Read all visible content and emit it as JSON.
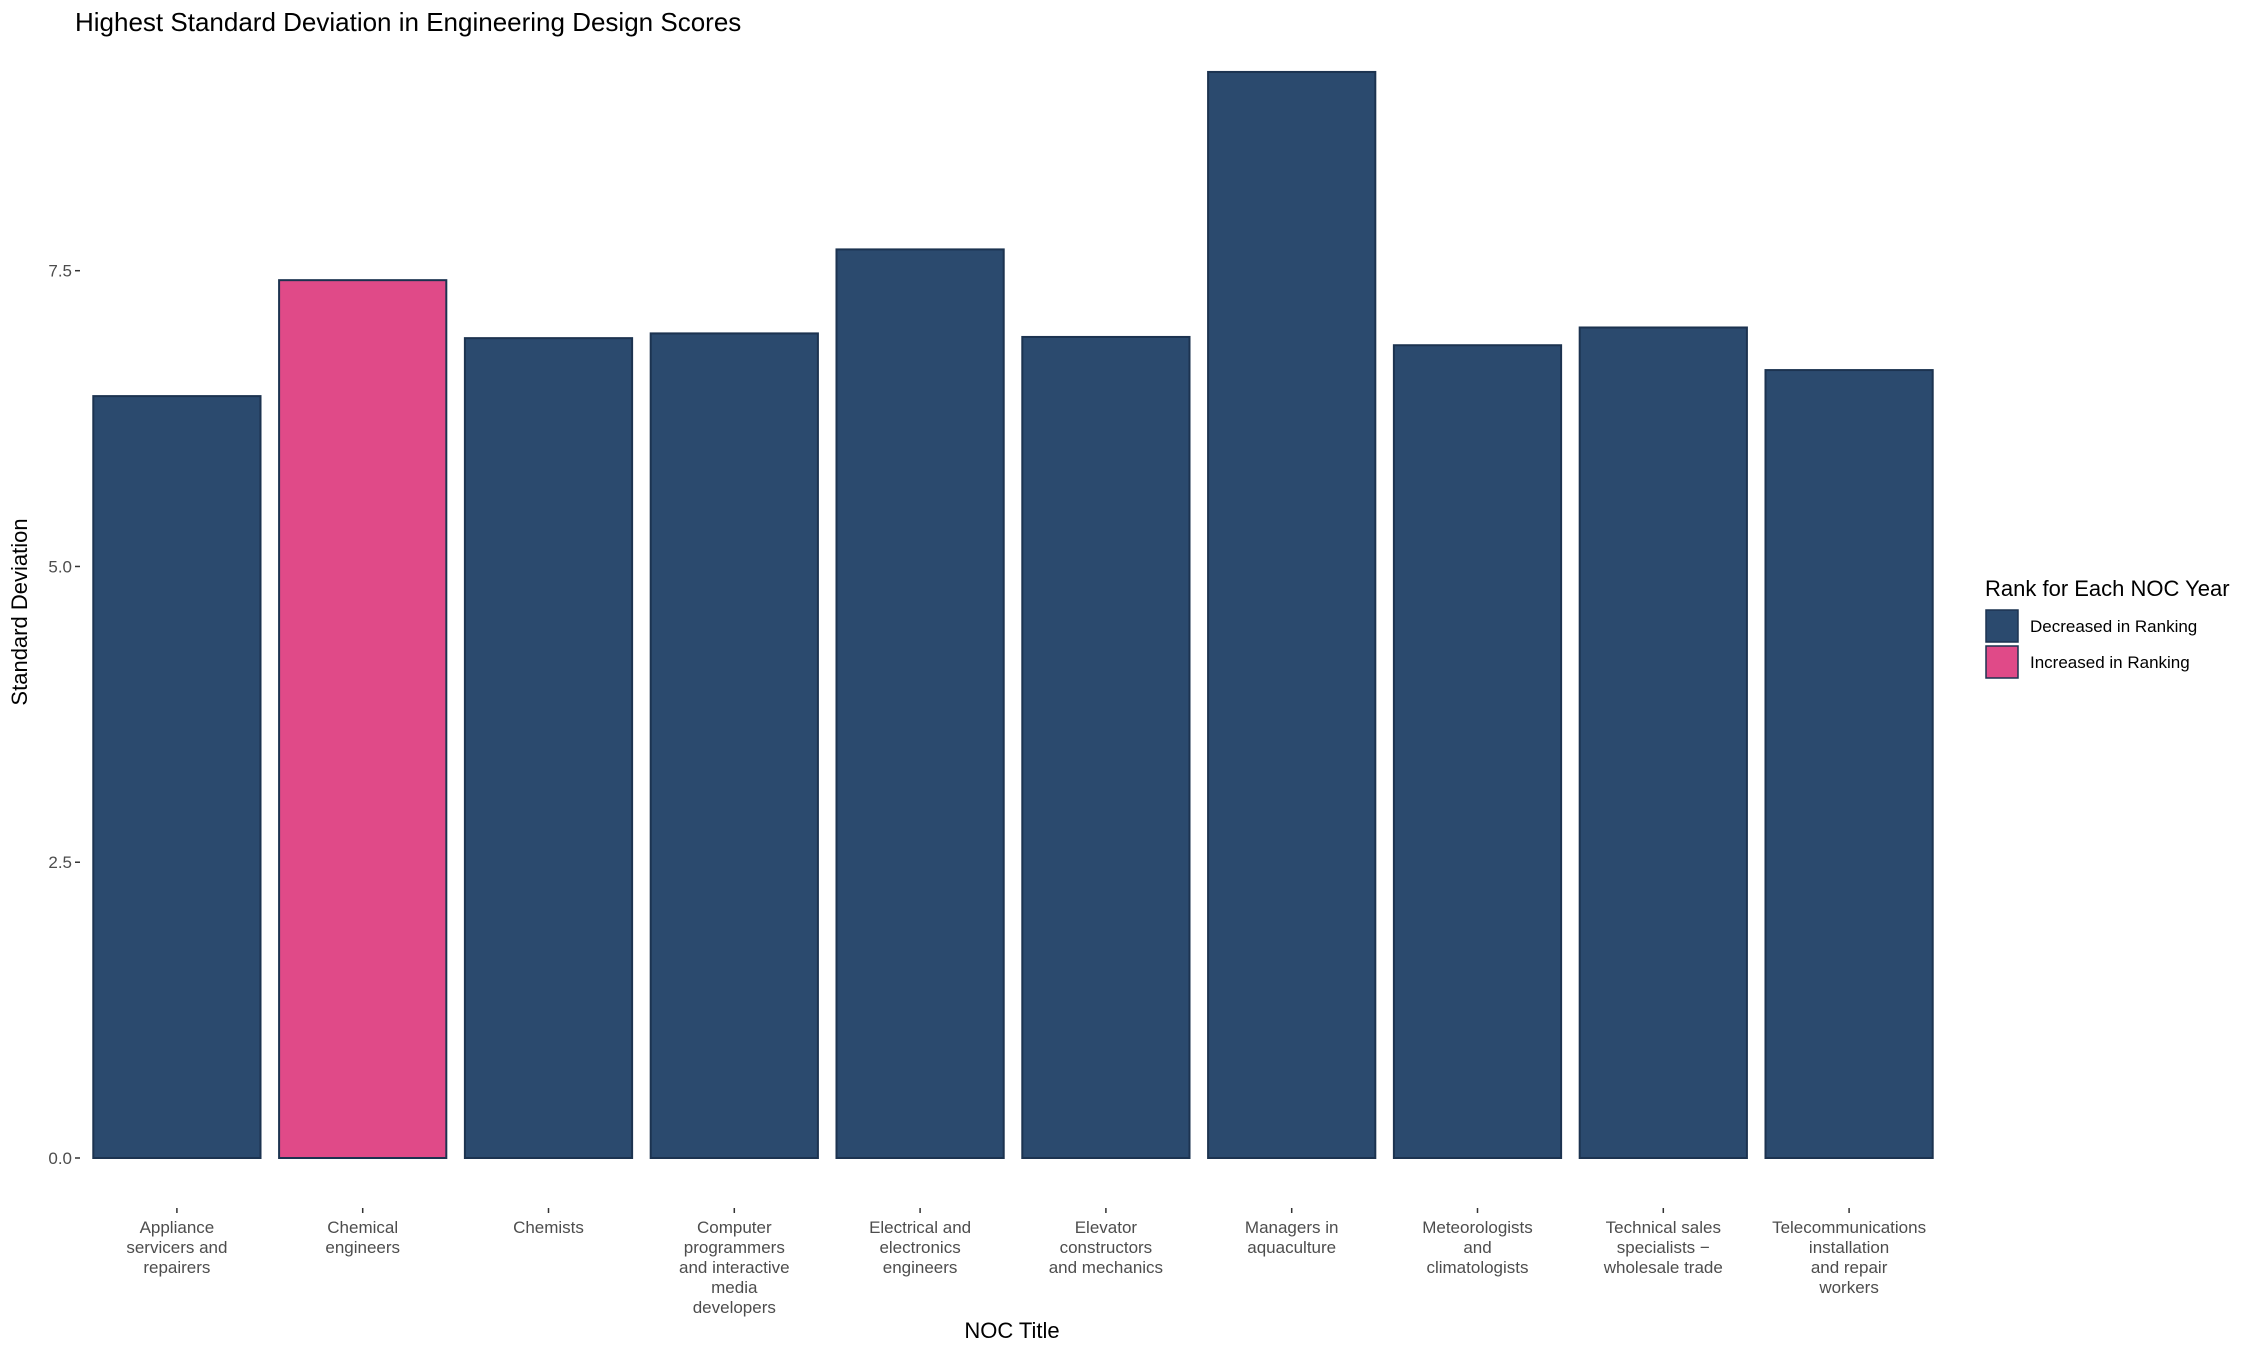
{
  "chart_data": {
    "type": "bar",
    "title": "Highest Standard Deviation in Engineering Design Scores",
    "xlabel": "NOC Title",
    "ylabel": "Standard Deviation",
    "ylim": [
      0,
      9.45
    ],
    "yticks": [
      0.0,
      2.5,
      5.0,
      7.5
    ],
    "ytick_labels": [
      "0.0",
      "2.5",
      "5.0",
      "7.5"
    ],
    "grid": false,
    "categories": [
      [
        "Appliance",
        "servicers and",
        "repairers"
      ],
      [
        "Chemical",
        "engineers"
      ],
      [
        "Chemists"
      ],
      [
        "Computer",
        "programmers",
        "and interactive",
        "media",
        "developers"
      ],
      [
        "Electrical and",
        "electronics",
        "engineers"
      ],
      [
        "Elevator",
        "constructors",
        "and mechanics"
      ],
      [
        "Managers in",
        "aquaculture"
      ],
      [
        "Meteorologists",
        "and",
        "climatologists"
      ],
      [
        "Technical sales",
        "specialists −",
        "wholesale trade"
      ],
      [
        "Telecommunications",
        "installation",
        "and repair",
        "workers"
      ]
    ],
    "values": [
      6.44,
      7.42,
      6.93,
      6.97,
      7.68,
      6.94,
      9.18,
      6.87,
      7.02,
      6.66
    ],
    "groups": [
      "Decreased in Ranking",
      "Increased in Ranking",
      "Decreased in Ranking",
      "Decreased in Ranking",
      "Decreased in Ranking",
      "Decreased in Ranking",
      "Decreased in Ranking",
      "Decreased in Ranking",
      "Decreased in Ranking",
      "Decreased in Ranking"
    ],
    "legend": {
      "title": "Rank for Each NOC Year",
      "position": "right",
      "entries": [
        {
          "label": "Decreased in Ranking",
          "color": "#2b4a6e"
        },
        {
          "label": "Increased in Ranking",
          "color": "#e04a88"
        }
      ]
    },
    "bar_outline_color": "#1c3350"
  }
}
